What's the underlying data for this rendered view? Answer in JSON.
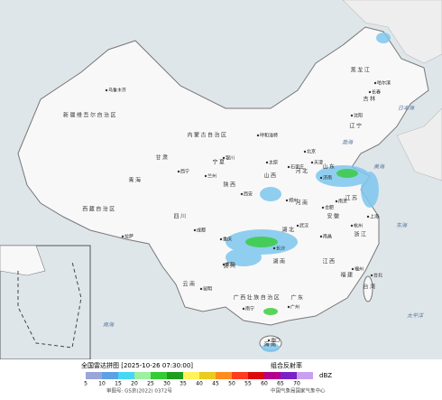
{
  "regions": [
    "新疆维吾尔自治区",
    "西藏自治区",
    "青海",
    "四川",
    "内蒙古自治区",
    "甘肃",
    "黑龙江",
    "吉林",
    "辽宁",
    "河北",
    "山西",
    "陕西",
    "河南",
    "湖北",
    "湖南",
    "广东",
    "广西壮族自治区",
    "云南",
    "贵州",
    "江西",
    "福建",
    "浙江",
    "安徽",
    "江苏",
    "山东",
    "宁夏",
    "台湾",
    "海南"
  ],
  "cities": [
    "乌鲁木齐",
    "拉萨",
    "西宁",
    "兰州",
    "银川",
    "呼和浩特",
    "哈尔滨",
    "长春",
    "沈阳",
    "北京",
    "天津",
    "石家庄",
    "太原",
    "济南",
    "郑州",
    "西安",
    "成都",
    "重庆",
    "贵阳",
    "昆明",
    "南宁",
    "广州",
    "长沙",
    "武汉",
    "南昌",
    "合肥",
    "南京",
    "上海",
    "杭州",
    "福州",
    "台北",
    "海口"
  ],
  "seas": [
    "渤海",
    "黄海",
    "东海",
    "南海",
    "太平洋",
    "日本海"
  ],
  "legend": {
    "title": "全国雷达拼图 [2025-10-26 07:30:00]",
    "product": "组合反射率",
    "unit": "dBZ",
    "levels": [
      5,
      10,
      15,
      20,
      25,
      30,
      35,
      40,
      45,
      50,
      55,
      60,
      65,
      70
    ],
    "colors": [
      "#9aa6d8",
      "#5ea0e6",
      "#47d7f5",
      "#9cf0a0",
      "#34cc34",
      "#1e9e1e",
      "#fff25a",
      "#ebcb20",
      "#ff8c1e",
      "#ff3c1e",
      "#dc0a0a",
      "#b4008c",
      "#7a22c8",
      "#c8a0f0"
    ]
  },
  "footer": {
    "approval": "审图号: GS京(2022) 0372号",
    "source": "中国气象局国家气象中心"
  }
}
